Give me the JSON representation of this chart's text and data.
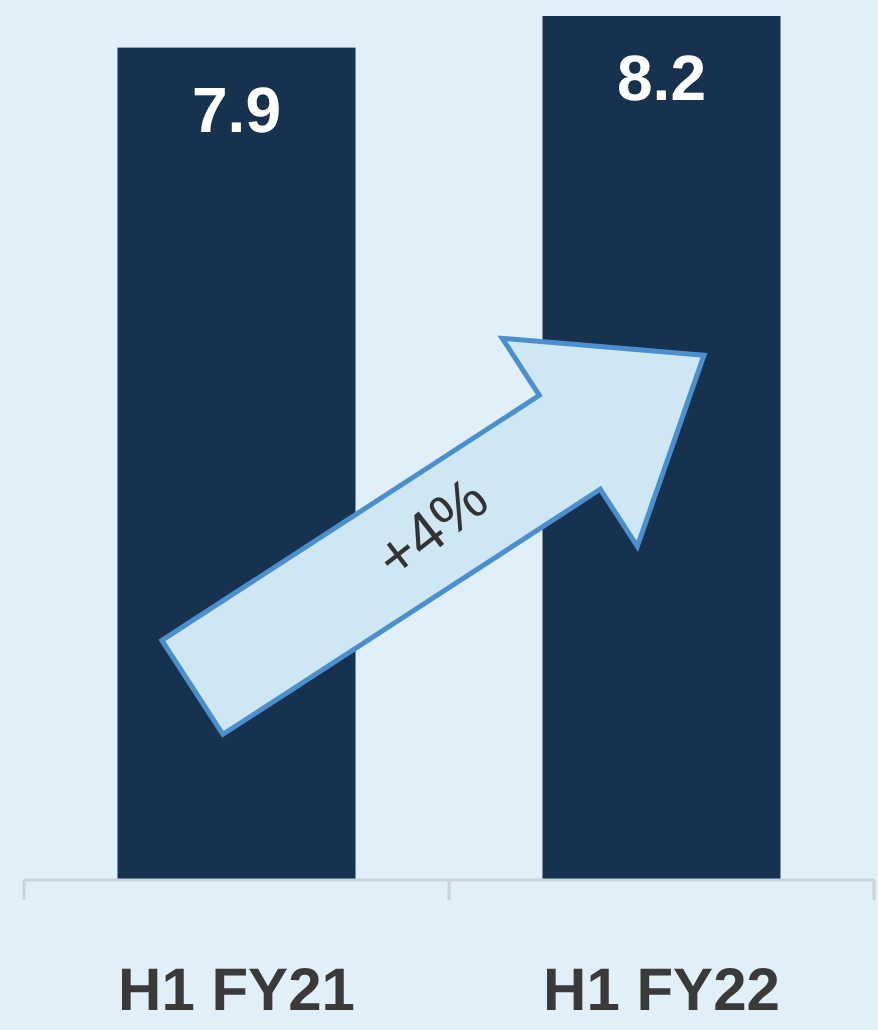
{
  "chart_data": {
    "type": "bar",
    "categories": [
      "H1 FY21",
      "H1 FY22"
    ],
    "values": [
      7.9,
      8.2
    ],
    "color": "#17324f",
    "data_labels": true,
    "annotations": [
      "+4%"
    ]
  }
}
